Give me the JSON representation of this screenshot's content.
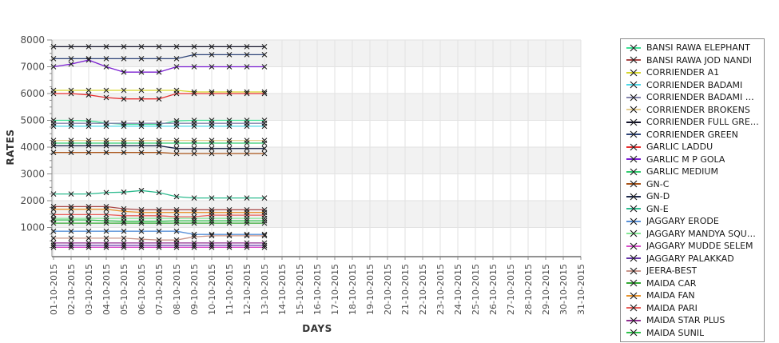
{
  "chart_data": {
    "type": "line",
    "title": "",
    "xlabel": "DAYS",
    "ylabel": "RATES",
    "ylim": [
      0,
      8000
    ],
    "ytick_step": 1000,
    "yticks": [
      1000,
      2000,
      3000,
      4000,
      5000,
      6000,
      7000,
      8000
    ],
    "grid": true,
    "plot_band_color": "#f2f2f2",
    "grid_color": "#e2e2e2",
    "axis_color": "#8c8c8c",
    "marker": "x",
    "marker_color": "#1f1f1f",
    "legend_position": "right",
    "x_dates": [
      "01-10-2015",
      "02-10-2015",
      "03-10-2015",
      "04-10-2015",
      "05-10-2015",
      "06-10-2015",
      "07-10-2015",
      "08-10-2015",
      "09-10-2015",
      "10-10-2015",
      "11-10-2015",
      "12-10-2015",
      "13-10-2015",
      "14-10-2015",
      "15-10-2015",
      "16-10-2015",
      "17-10-2015",
      "18-10-2015",
      "19-10-2015",
      "20-10-2015",
      "21-10-2015",
      "22-10-2015",
      "23-10-2015",
      "24-10-2015",
      "25-10-2015",
      "26-10-2015",
      "27-10-2015",
      "28-10-2015",
      "29-10-2015",
      "30-10-2015",
      "31-10-2015"
    ],
    "data_days": 13,
    "series": [
      {
        "name": "BANSI RAWA ELEPHANT",
        "color": "#3FE096",
        "values": [
          5000,
          5000,
          4980,
          4900,
          4850,
          4850,
          4850,
          4980,
          5000,
          5000,
          5000,
          5000,
          5000
        ]
      },
      {
        "name": "BANSI RAWA JOD NANDI",
        "color": "#A84848",
        "values": [
          1780,
          1780,
          1780,
          1780,
          1700,
          1660,
          1660,
          1660,
          1660,
          1660,
          1660,
          1660,
          1660
        ]
      },
      {
        "name": "CORRIENDER A1",
        "color": "#D6D62B",
        "values": [
          6120,
          6120,
          6120,
          6120,
          6120,
          6120,
          6120,
          6120,
          6060,
          6060,
          6060,
          6060,
          6060
        ]
      },
      {
        "name": "CORRIENDER BADAMI",
        "color": "#4FD8E8",
        "values": [
          4780,
          4780,
          4780,
          4780,
          4780,
          4780,
          4780,
          4780,
          4780,
          4780,
          4780,
          4780,
          4780
        ]
      },
      {
        "name": "CORRIENDER BADAMI MED",
        "color": "#8585AD",
        "values": [
          4890,
          4890,
          4890,
          4890,
          4890,
          4890,
          4890,
          4890,
          4890,
          4890,
          4890,
          4890,
          4890
        ]
      },
      {
        "name": "CORRIENDER BROKENS",
        "color": "#E3CC8F",
        "values": [
          4250,
          4250,
          4250,
          4250,
          4250,
          4250,
          4250,
          4250,
          4250,
          4250,
          4250,
          4250,
          4250
        ]
      },
      {
        "name": "CORRIENDER FULL GREEN",
        "color": "#14142B",
        "values": [
          7750,
          7750,
          7750,
          7750,
          7750,
          7750,
          7750,
          7750,
          7750,
          7750,
          7750,
          7750,
          7750
        ]
      },
      {
        "name": "CORRIENDER GREEN",
        "color": "#2E4478",
        "values": [
          7300,
          7300,
          7300,
          7300,
          7300,
          7300,
          7300,
          7300,
          7450,
          7450,
          7450,
          7450,
          7450
        ]
      },
      {
        "name": "GARLIC LADDU",
        "color": "#E83030",
        "values": [
          6000,
          6000,
          5950,
          5850,
          5800,
          5800,
          5800,
          6000,
          6000,
          6000,
          6000,
          6000,
          6000
        ]
      },
      {
        "name": "GARLIC M P GOLA",
        "color": "#7A1FD1",
        "values": [
          7000,
          7100,
          7250,
          7000,
          6800,
          6800,
          6800,
          7000,
          7000,
          7000,
          7000,
          7000,
          7000
        ]
      },
      {
        "name": "GARLIC MEDIUM",
        "color": "#33CC70",
        "values": [
          4150,
          4150,
          4150,
          4150,
          4150,
          4150,
          4150,
          4150,
          4150,
          4150,
          4150,
          4150,
          4150
        ]
      },
      {
        "name": "GN-C",
        "color": "#A85418",
        "values": [
          3800,
          3800,
          3800,
          3800,
          3800,
          3800,
          3800,
          3760,
          3760,
          3760,
          3760,
          3760,
          3760
        ]
      },
      {
        "name": "GN-D",
        "color": "#1F2B4D",
        "values": [
          4050,
          4050,
          4050,
          4050,
          4050,
          4050,
          4050,
          3950,
          3950,
          3950,
          3950,
          3950,
          3950
        ]
      },
      {
        "name": "GN-E",
        "color": "#2EBB8F",
        "values": [
          2250,
          2250,
          2250,
          2300,
          2320,
          2380,
          2300,
          2150,
          2100,
          2100,
          2100,
          2100,
          2100
        ]
      },
      {
        "name": "JAGGARY ERODE",
        "color": "#5890D8",
        "values": [
          860,
          860,
          860,
          860,
          860,
          860,
          860,
          860,
          740,
          740,
          740,
          740,
          740
        ]
      },
      {
        "name": "JAGGARY MANDYA SQUARE",
        "color": "#85E895",
        "values": [
          1340,
          1340,
          1340,
          1340,
          1340,
          1340,
          1340,
          1340,
          1340,
          1340,
          1340,
          1340,
          1340
        ]
      },
      {
        "name": "JAGGARY MUDDE SELEM",
        "color": "#D84FC9",
        "values": [
          260,
          260,
          260,
          260,
          260,
          260,
          260,
          260,
          260,
          260,
          260,
          260,
          260
        ]
      },
      {
        "name": "JAGGARY PALAKKAD",
        "color": "#6636A8",
        "values": [
          330,
          330,
          330,
          330,
          330,
          330,
          330,
          330,
          330,
          330,
          330,
          330,
          330
        ]
      },
      {
        "name": "JEERA-BEST",
        "color": "#C9958A",
        "values": [
          600,
          600,
          600,
          600,
          600,
          560,
          530,
          530,
          650,
          690,
          690,
          690,
          690
        ]
      },
      {
        "name": "MAIDA CAR",
        "color": "#33A833",
        "values": [
          1160,
          1160,
          1160,
          1160,
          1160,
          1160,
          1160,
          1160,
          1160,
          1160,
          1160,
          1160,
          1160
        ]
      },
      {
        "name": "MAIDA FAN",
        "color": "#E8942E",
        "values": [
          1680,
          1680,
          1680,
          1680,
          1600,
          1560,
          1560,
          1560,
          1560,
          1560,
          1560,
          1560,
          1560
        ]
      },
      {
        "name": "MAIDA PARI",
        "color": "#E8605C",
        "values": [
          1480,
          1480,
          1480,
          1480,
          1440,
          1440,
          1440,
          1400,
          1400,
          1460,
          1460,
          1460,
          1460
        ]
      },
      {
        "name": "MAIDA STAR PLUS",
        "color": "#8F2E8F",
        "values": [
          420,
          420,
          420,
          420,
          420,
          420,
          420,
          420,
          420,
          420,
          420,
          420,
          420
        ]
      },
      {
        "name": "MAIDA SUNIL",
        "color": "#2EC24A",
        "values": [
          1280,
          1280,
          1280,
          1250,
          1230,
          1230,
          1230,
          1250,
          1250,
          1250,
          1250,
          1250,
          1250
        ]
      }
    ]
  }
}
